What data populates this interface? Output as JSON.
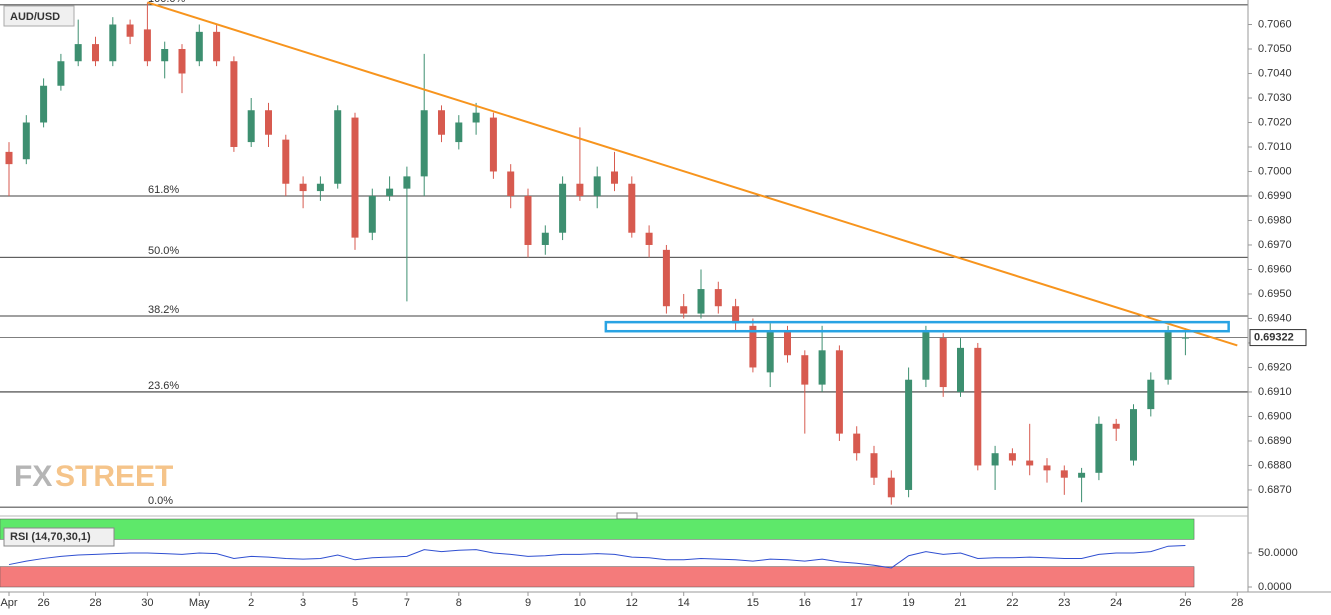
{
  "chart_data": {
    "type": "candlestick",
    "title": "AUD/USD",
    "watermark": [
      "FX",
      "STREET"
    ],
    "up_color": "#3d8f70",
    "down_color": "#d75a4f",
    "categories": [
      "Apr",
      null,
      "26",
      null,
      null,
      "28",
      null,
      null,
      "30",
      null,
      null,
      "May",
      null,
      null,
      "2",
      null,
      null,
      "3",
      null,
      null,
      "5",
      null,
      null,
      "7",
      null,
      null,
      "8",
      null,
      null,
      null,
      "9",
      null,
      null,
      "10",
      null,
      null,
      "12",
      null,
      null,
      "14",
      null,
      null,
      null,
      "15",
      null,
      null,
      "16",
      null,
      null,
      "17",
      null,
      null,
      "19",
      null,
      null,
      "21",
      null,
      null,
      "22",
      null,
      null,
      "23",
      null,
      null,
      "24",
      null,
      null,
      null,
      "26",
      null,
      null,
      "28"
    ],
    "open": [
      0.7008,
      0.7005,
      0.702,
      0.7035,
      0.7045,
      0.7052,
      0.7045,
      0.706,
      0.7058,
      0.7045,
      0.705,
      0.7045,
      0.7057,
      0.7045,
      0.7012,
      0.7025,
      0.7013,
      0.6995,
      0.6992,
      0.6995,
      0.7022,
      0.6975,
      0.699,
      0.6993,
      0.6998,
      0.7025,
      0.7012,
      0.702,
      0.7022,
      0.7,
      0.699,
      0.697,
      0.6975,
      0.6995,
      0.699,
      0.7,
      0.6995,
      0.6975,
      0.6968,
      0.6945,
      0.6942,
      0.6952,
      0.6945,
      0.6937,
      0.6918,
      0.6935,
      0.6925,
      0.6913,
      0.6927,
      0.6893,
      0.6885,
      0.6875,
      0.687,
      0.6915,
      0.6932,
      0.691,
      0.6928,
      0.688,
      0.6885,
      0.6882,
      0.688,
      0.6878,
      0.6875,
      0.6877,
      0.6897,
      0.6882,
      0.6903,
      0.6915,
      0.6932,
      null,
      null,
      null
    ],
    "high": [
      0.7012,
      0.7023,
      0.7038,
      0.7048,
      0.7062,
      0.7055,
      0.7063,
      0.7062,
      0.7069,
      0.7053,
      0.7052,
      0.706,
      0.706,
      0.7047,
      0.703,
      0.7028,
      0.7015,
      0.6998,
      0.6998,
      0.7027,
      0.7024,
      0.6993,
      0.6998,
      0.7002,
      0.7048,
      0.7027,
      0.7023,
      0.7028,
      0.7024,
      0.7003,
      0.6993,
      0.6978,
      0.6998,
      0.7018,
      0.7002,
      0.7008,
      0.6998,
      0.6978,
      0.697,
      0.695,
      0.696,
      0.6955,
      0.6948,
      0.694,
      0.6938,
      0.6937,
      0.6927,
      0.6937,
      0.6929,
      0.6896,
      0.6888,
      0.6878,
      0.692,
      0.6937,
      0.6934,
      0.6932,
      0.693,
      0.6888,
      0.6887,
      0.6897,
      0.6883,
      0.688,
      0.6879,
      0.69,
      0.6899,
      0.6905,
      0.6918,
      0.6937,
      0.6936,
      null,
      null,
      null
    ],
    "low": [
      0.699,
      0.7003,
      0.7018,
      0.7033,
      0.7043,
      0.7043,
      0.7043,
      0.7052,
      0.7043,
      0.7038,
      0.7032,
      0.7043,
      0.7043,
      0.7008,
      0.701,
      0.701,
      0.699,
      0.6985,
      0.6988,
      0.6993,
      0.6968,
      0.6972,
      0.6988,
      0.6947,
      0.699,
      0.7012,
      0.7009,
      0.7015,
      0.6997,
      0.6985,
      0.6965,
      0.6966,
      0.6972,
      0.6988,
      0.6985,
      0.6992,
      0.6973,
      0.6965,
      0.6942,
      0.694,
      0.694,
      0.6942,
      0.6935,
      0.6918,
      0.6912,
      0.6922,
      0.6893,
      0.691,
      0.689,
      0.6882,
      0.6872,
      0.6864,
      0.6867,
      0.6912,
      0.6908,
      0.6908,
      0.6878,
      0.687,
      0.688,
      0.6876,
      0.6873,
      0.6868,
      0.6865,
      0.6874,
      0.689,
      0.688,
      0.69,
      0.6913,
      0.6925,
      null,
      null,
      null
    ],
    "close": [
      0.7003,
      0.702,
      0.7035,
      0.7045,
      0.7052,
      0.7045,
      0.706,
      0.7055,
      0.7045,
      0.705,
      0.704,
      0.7057,
      0.7045,
      0.701,
      0.7025,
      0.7015,
      0.6995,
      0.6992,
      0.6995,
      0.7025,
      0.6973,
      0.699,
      0.6993,
      0.6998,
      0.7025,
      0.7015,
      0.702,
      0.7024,
      0.7,
      0.699,
      0.697,
      0.6975,
      0.6995,
      0.699,
      0.6998,
      0.6995,
      0.6975,
      0.697,
      0.6945,
      0.6942,
      0.6952,
      0.6945,
      0.6938,
      0.692,
      0.6935,
      0.6925,
      0.6913,
      0.6927,
      0.6893,
      0.6885,
      0.6875,
      0.6867,
      0.6915,
      0.6935,
      0.6912,
      0.6928,
      0.688,
      0.6885,
      0.6882,
      0.688,
      0.6878,
      0.6875,
      0.6877,
      0.6897,
      0.6895,
      0.6903,
      0.6915,
      0.6935,
      0.69322,
      null,
      null,
      null
    ],
    "ylim": [
      0.6861,
      0.707
    ],
    "yticks": [
      {
        "value": 0.687,
        "label": "0.6870"
      },
      {
        "value": 0.688,
        "label": "0.6880"
      },
      {
        "value": 0.689,
        "label": "0.6890"
      },
      {
        "value": 0.69,
        "label": "0.6900"
      },
      {
        "value": 0.691,
        "label": "0.6910"
      },
      {
        "value": 0.692,
        "label": "0.6920"
      },
      {
        "value": 0.693,
        "label": "0.6930"
      },
      {
        "value": 0.694,
        "label": "0.6940"
      },
      {
        "value": 0.695,
        "label": "0.6950"
      },
      {
        "value": 0.696,
        "label": "0.6960"
      },
      {
        "value": 0.697,
        "label": "0.6970"
      },
      {
        "value": 0.698,
        "label": "0.6980"
      },
      {
        "value": 0.699,
        "label": "0.6990"
      },
      {
        "value": 0.7,
        "label": "0.7000"
      },
      {
        "value": 0.701,
        "label": "0.7010"
      },
      {
        "value": 0.702,
        "label": "0.7020"
      },
      {
        "value": 0.703,
        "label": "0.7030"
      },
      {
        "value": 0.704,
        "label": "0.7040"
      },
      {
        "value": 0.705,
        "label": "0.7050"
      },
      {
        "value": 0.706,
        "label": "0.7060"
      }
    ],
    "last_price": {
      "value": 0.69322,
      "label": "0.69322"
    },
    "fib_levels": [
      {
        "label": "100.0%",
        "value": 0.7068
      },
      {
        "label": "61.8%",
        "value": 0.699
      },
      {
        "label": "50.0%",
        "value": 0.6965
      },
      {
        "label": "38.2%",
        "value": 0.6941
      },
      {
        "label": "23.6%",
        "value": 0.691
      },
      {
        "label": "0.0%",
        "value": 0.6863
      }
    ],
    "fib_color": "#000000",
    "trendline": {
      "from": [
        8,
        0.7069
      ],
      "to": [
        71,
        0.6929
      ],
      "color": "#f7941d"
    },
    "zone": {
      "x": [
        34.5,
        70.5
      ],
      "y": [
        0.69348,
        0.69385
      ],
      "color": "#29a3e3"
    },
    "rsi": {
      "label": "RSI (14,70,30,1)",
      "color": "#2f4fd1",
      "values": [
        33,
        38,
        42,
        45,
        47,
        48,
        49,
        50,
        50,
        49,
        48,
        50,
        49,
        42,
        45,
        44,
        42,
        41,
        42,
        47,
        40,
        43,
        44,
        45,
        55,
        52,
        54,
        55,
        50,
        48,
        45,
        46,
        48,
        48,
        49,
        48,
        44,
        43,
        40,
        40,
        42,
        41,
        40,
        38,
        41,
        40,
        38,
        41,
        37,
        35,
        32,
        28,
        46,
        52,
        48,
        50,
        42,
        43,
        43,
        44,
        43,
        42,
        42,
        48,
        50,
        50,
        52,
        60,
        61,
        null,
        null,
        null
      ],
      "ylim": [
        0,
        100
      ],
      "yticks": [
        {
          "value": 0,
          "label": "0.0000"
        },
        {
          "value": 50,
          "label": "50.0000"
        }
      ],
      "overbought": 70,
      "oversold": 30,
      "overbought_color": "#5ee86a",
      "oversold_color": "#f47b7b"
    }
  }
}
